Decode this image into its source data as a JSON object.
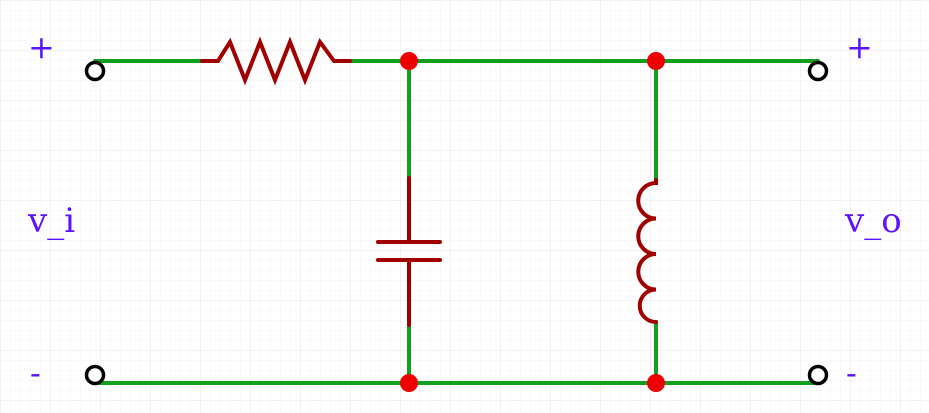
{
  "labels": {
    "input_voltage": "v_i",
    "output_voltage": "v_o",
    "input_plus": "+",
    "input_minus": "-",
    "output_plus": "+",
    "output_minus": "-"
  },
  "colors": {
    "wire": "#14a01e",
    "component": "#a00000",
    "junction": "#ee0000",
    "terminal": "#000000",
    "label": "#5b12ff",
    "grid": "#eeeeee"
  },
  "components": [
    {
      "type": "resistor",
      "icon": "resistor-icon"
    },
    {
      "type": "capacitor",
      "icon": "capacitor-icon"
    },
    {
      "type": "inductor",
      "icon": "inductor-icon"
    }
  ]
}
